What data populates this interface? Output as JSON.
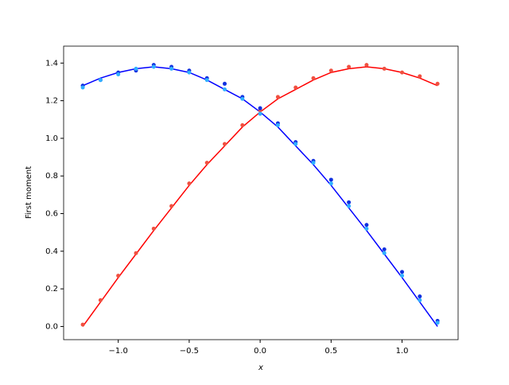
{
  "chart_data": {
    "type": "line",
    "xlabel": "x",
    "ylabel": "First moment",
    "xlim": [
      -1.385,
      1.395
    ],
    "ylim": [
      -0.07,
      1.49
    ],
    "xticks": [
      {
        "value": -1,
        "label": "−1.0"
      },
      {
        "value": -0.5,
        "label": "−0.5"
      },
      {
        "value": 0,
        "label": "0.0"
      },
      {
        "value": 0.5,
        "label": "0.5"
      },
      {
        "value": 1,
        "label": "1.0"
      }
    ],
    "yticks": [
      {
        "value": 0,
        "label": "0.0"
      },
      {
        "value": 0.2,
        "label": "0.2"
      },
      {
        "value": 0.4,
        "label": "0.4"
      },
      {
        "value": 0.6,
        "label": "0.6"
      },
      {
        "value": 0.8,
        "label": "0.8"
      },
      {
        "value": 1,
        "label": "1.0"
      },
      {
        "value": 1.2,
        "label": "1.2"
      },
      {
        "value": 1.4,
        "label": "1.4"
      }
    ],
    "x": [
      -1.25,
      -1.125,
      -1.0,
      -0.875,
      -0.75,
      -0.625,
      -0.5,
      -0.375,
      -0.25,
      -0.125,
      0,
      0.125,
      0.25,
      0.375,
      0.5,
      0.625,
      0.75,
      0.875,
      1.0,
      1.125,
      1.25
    ],
    "series": [
      {
        "kind": "line",
        "color": "#ff0000",
        "values": [
          0.0,
          0.13,
          0.26,
          0.385,
          0.51,
          0.63,
          0.75,
          0.86,
          0.96,
          1.06,
          1.14,
          1.21,
          1.26,
          1.31,
          1.35,
          1.37,
          1.38,
          1.37,
          1.35,
          1.32,
          1.28
        ]
      },
      {
        "kind": "line",
        "color": "#0000ff",
        "values": [
          1.28,
          1.32,
          1.35,
          1.37,
          1.38,
          1.37,
          1.35,
          1.31,
          1.26,
          1.21,
          1.14,
          1.06,
          0.96,
          0.86,
          0.75,
          0.63,
          0.51,
          0.385,
          0.26,
          0.13,
          0.0
        ]
      },
      {
        "kind": "scatter",
        "color": "#f05040",
        "values": [
          0.01,
          0.14,
          0.27,
          0.39,
          0.52,
          0.64,
          0.76,
          0.87,
          0.97,
          1.07,
          1.15,
          1.22,
          1.27,
          1.32,
          1.36,
          1.38,
          1.39,
          1.37,
          1.35,
          1.33,
          1.29
        ]
      },
      {
        "kind": "scatter",
        "color": "#1030e0",
        "values": [
          1.28,
          1.31,
          1.35,
          1.36,
          1.39,
          1.38,
          1.36,
          1.32,
          1.29,
          1.22,
          1.16,
          1.08,
          0.98,
          0.88,
          0.78,
          0.66,
          0.54,
          0.41,
          0.29,
          0.16,
          0.03
        ]
      },
      {
        "kind": "scatter",
        "color": "#30b0ff",
        "values": [
          1.27,
          1.31,
          1.34,
          1.37,
          1.38,
          1.37,
          1.35,
          1.31,
          1.26,
          1.21,
          1.13,
          1.07,
          0.97,
          0.87,
          0.76,
          0.64,
          0.52,
          0.39,
          0.27,
          0.14,
          0.02
        ]
      }
    ]
  }
}
